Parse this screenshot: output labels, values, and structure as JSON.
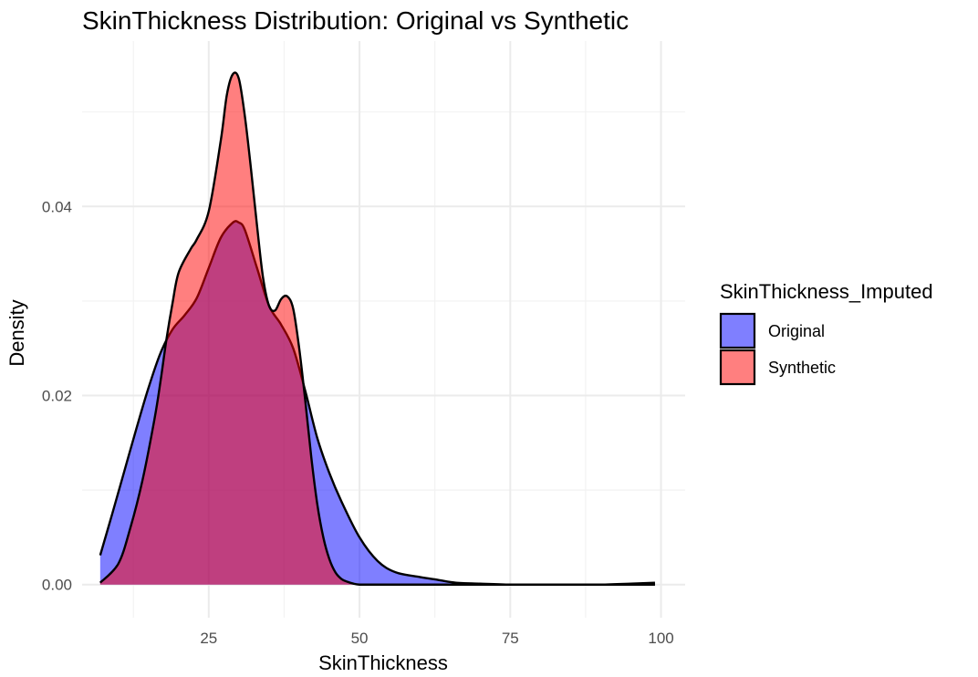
{
  "chart_data": {
    "type": "area",
    "title": "SkinThickness Distribution: Original vs Synthetic",
    "xlabel": "SkinThickness",
    "ylabel": "Density",
    "xlim": [
      4,
      104
    ],
    "ylim": [
      -0.0035,
      0.0575
    ],
    "xticks": [
      25,
      50,
      75,
      100
    ],
    "xtick_labels": [
      "25",
      "50",
      "75",
      "100"
    ],
    "yticks": [
      0.0,
      0.02,
      0.04
    ],
    "ytick_labels": [
      "0.00",
      "0.02",
      "0.04"
    ],
    "grid": true,
    "legend": {
      "title": "SkinThickness_Imputed",
      "position": "right"
    },
    "series": [
      {
        "name": "Original",
        "color": "#0000FF",
        "opacity": 0.5,
        "x": [
          7,
          9,
          11,
          13,
          15,
          17,
          19,
          21,
          23,
          25,
          27,
          29,
          30,
          31,
          33,
          35,
          37,
          39,
          41,
          43,
          45,
          47,
          50,
          53,
          56,
          60,
          63,
          66,
          70,
          75,
          80,
          85,
          90,
          95,
          99
        ],
        "y": [
          0.0031,
          0.0075,
          0.012,
          0.0165,
          0.0208,
          0.0245,
          0.027,
          0.0285,
          0.0303,
          0.0335,
          0.0367,
          0.0383,
          0.0383,
          0.0375,
          0.0335,
          0.0295,
          0.0275,
          0.025,
          0.0205,
          0.0155,
          0.0118,
          0.0088,
          0.005,
          0.0025,
          0.0013,
          0.0008,
          0.0005,
          0.0002,
          0.0001,
          0.0,
          0.0,
          0.0,
          0.0,
          0.0001,
          0.0002
        ]
      },
      {
        "name": "Synthetic",
        "color": "#FF0000",
        "opacity": 0.5,
        "x": [
          7,
          10,
          12,
          14,
          16,
          17,
          18,
          19,
          20,
          22,
          23,
          25,
          27,
          28,
          29,
          30,
          31,
          32,
          33,
          34,
          35,
          36,
          37,
          38,
          39,
          40,
          41,
          42,
          43,
          44,
          45,
          46,
          47,
          48,
          49,
          50,
          52,
          54,
          56,
          60,
          65,
          70,
          75,
          80,
          85,
          90,
          95,
          99
        ],
        "y": [
          0.0002,
          0.0022,
          0.006,
          0.011,
          0.0175,
          0.0215,
          0.026,
          0.0298,
          0.033,
          0.0355,
          0.0365,
          0.0395,
          0.047,
          0.0518,
          0.054,
          0.0535,
          0.0495,
          0.044,
          0.038,
          0.0325,
          0.0295,
          0.029,
          0.0302,
          0.0305,
          0.0292,
          0.025,
          0.0195,
          0.0135,
          0.0085,
          0.005,
          0.0027,
          0.0013,
          0.0006,
          0.0003,
          0.0001,
          0.0,
          0.0,
          0.0,
          0.0,
          0.0,
          0.0,
          0.0,
          0.0,
          0.0,
          0.0,
          0.0,
          0.0,
          0.0
        ]
      }
    ]
  }
}
